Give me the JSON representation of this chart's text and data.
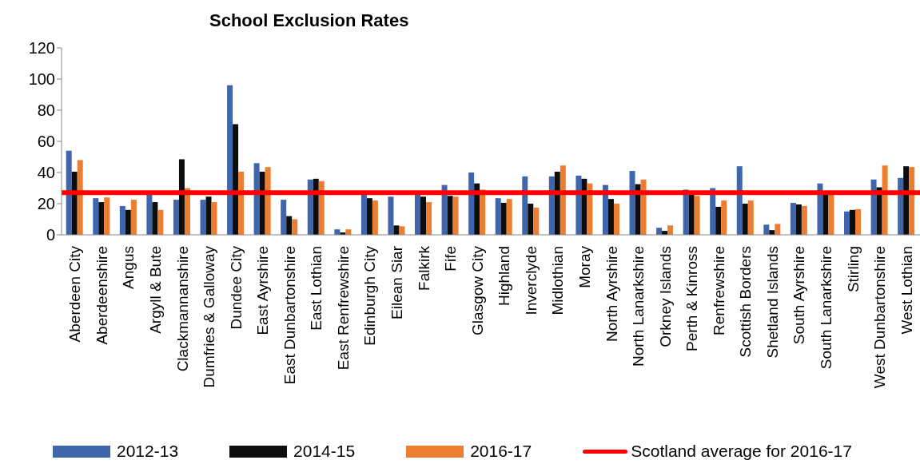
{
  "chart_data": {
    "type": "bar",
    "title": "School Exclusion Rates",
    "categories": [
      "Aberdeen City",
      "Aberdeenshire",
      "Angus",
      "Argyll & Bute",
      "Clackmannanshire",
      "Dumfries & Galloway",
      "Dundee City",
      "East Ayrshire",
      "East Dunbartonshire",
      "East Lothian",
      "East Renfrewshire",
      "Edinburgh City",
      "Eilean Siar",
      "Falkirk",
      "Fife",
      "Glasgow City",
      "Highland",
      "Inverclyde",
      "Midlothian",
      "Moray",
      "North Ayrshire",
      "North Lanarkshire",
      "Orkney Islands",
      "Perth & Kinross",
      "Renfrewshire",
      "Scottish Borders",
      "Shetland Islands",
      "South Ayrshire",
      "South Lanarkshire",
      "Stirling",
      "West Dunbartonshire",
      "West Lothian"
    ],
    "series": [
      {
        "name": "2012-13",
        "color": "#3f65ad",
        "values": [
          54,
          23.5,
          18.5,
          27,
          22.5,
          22.5,
          96,
          46,
          22.5,
          35.5,
          3.5,
          27,
          24.5,
          27,
          32,
          40,
          23.5,
          37.5,
          37.5,
          38,
          32,
          41,
          4.5,
          29,
          30,
          44,
          6.5,
          20.5,
          33,
          15,
          35.5,
          36.5
        ]
      },
      {
        "name": "2014-15",
        "color": "#0d0d0d",
        "values": [
          40.5,
          21,
          16,
          21,
          48.5,
          24.5,
          71,
          40.5,
          12,
          36,
          1.5,
          23.5,
          6,
          24.5,
          25,
          33,
          20.5,
          20,
          40.5,
          36,
          23,
          32.5,
          2.5,
          27,
          18,
          20,
          3,
          19.5,
          26,
          16,
          30.5,
          44
        ]
      },
      {
        "name": "2016-17",
        "color": "#ed7d31",
        "values": [
          48,
          24,
          22.5,
          16,
          30,
          21,
          40.5,
          43.5,
          10,
          34.5,
          3.5,
          22,
          5.5,
          21,
          24.5,
          29,
          23,
          17.5,
          44.5,
          33,
          20,
          35.5,
          6,
          25,
          22,
          22,
          7,
          18.5,
          27,
          16.5,
          44.5,
          43.5
        ]
      }
    ],
    "ylim": [
      0,
      120
    ],
    "yticks": [
      0,
      20,
      40,
      60,
      80,
      100,
      120
    ],
    "ref_lines": [
      {
        "axis": "y",
        "value": 27,
        "label": "Scotland average for 2016-17",
        "color": "#ff0000"
      }
    ],
    "legend": "bottom"
  }
}
